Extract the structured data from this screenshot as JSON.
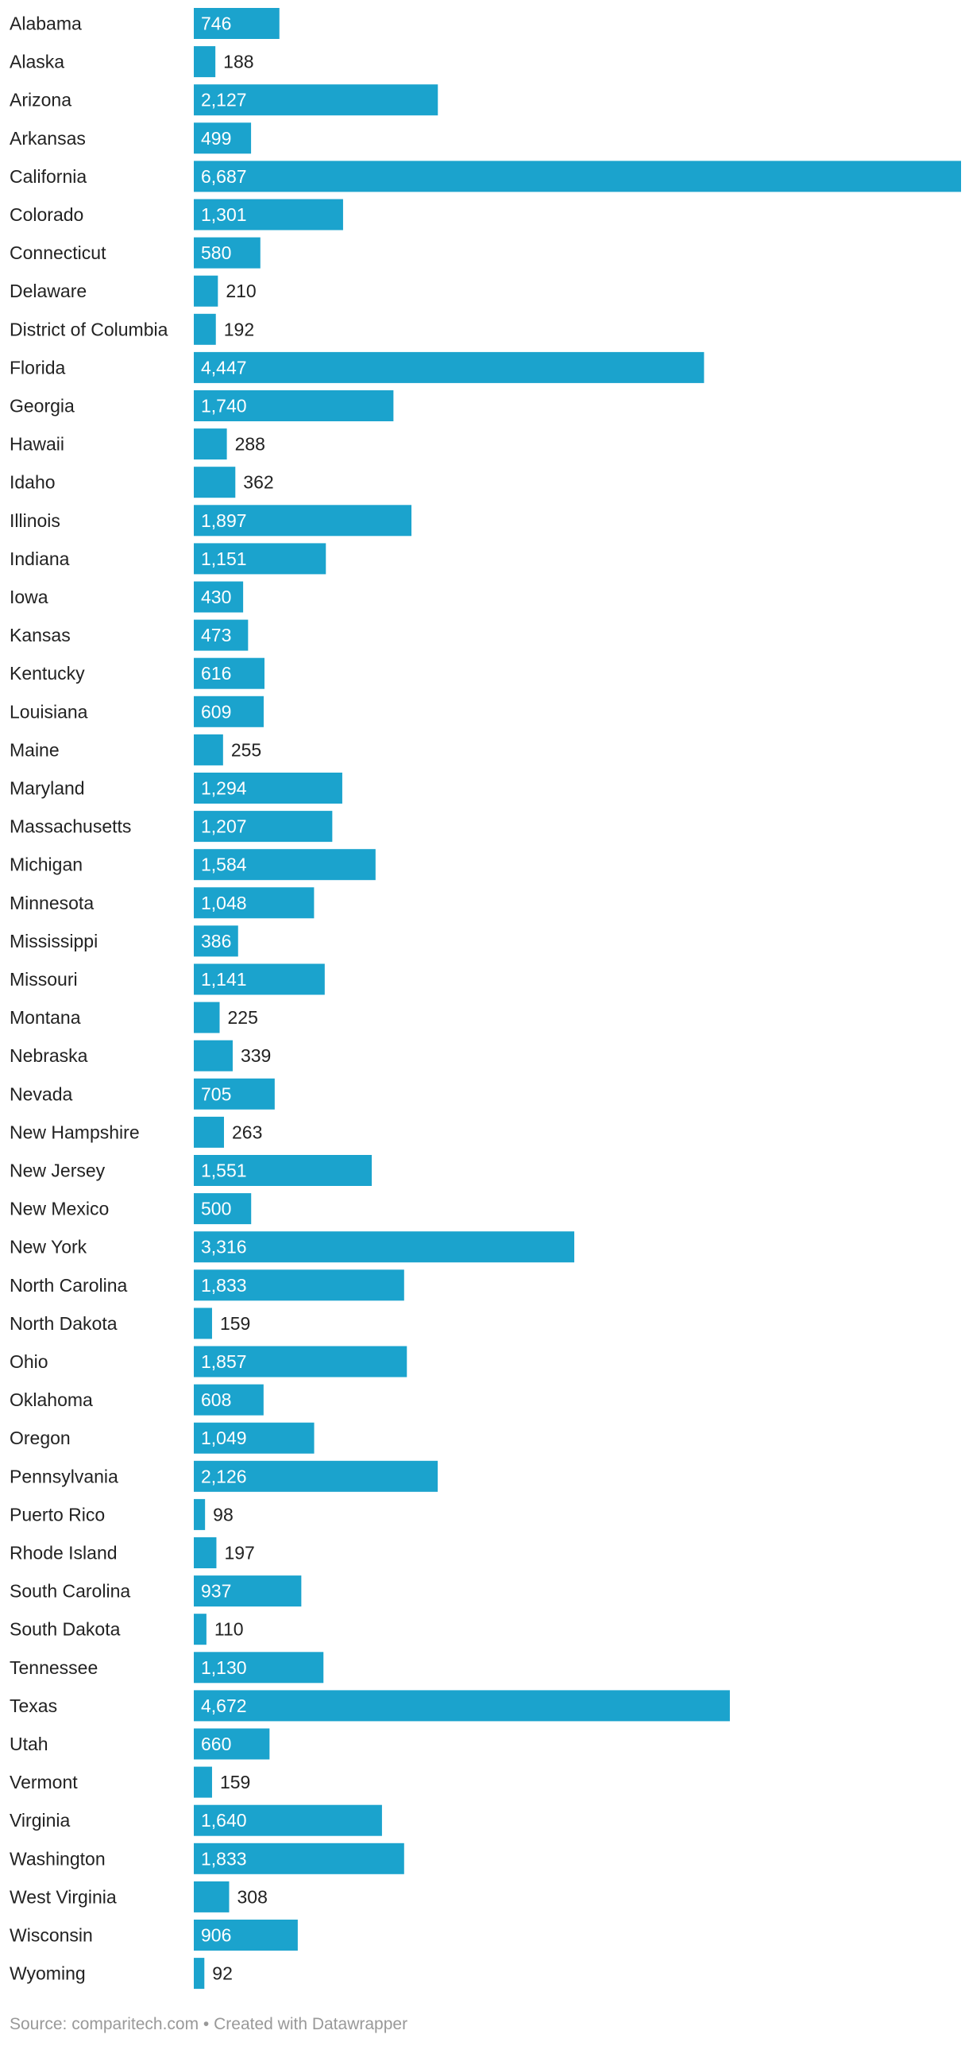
{
  "chart_data": {
    "type": "bar",
    "orientation": "horizontal",
    "categories": [
      "Alabama",
      "Alaska",
      "Arizona",
      "Arkansas",
      "California",
      "Colorado",
      "Connecticut",
      "Delaware",
      "District of Columbia",
      "Florida",
      "Georgia",
      "Hawaii",
      "Idaho",
      "Illinois",
      "Indiana",
      "Iowa",
      "Kansas",
      "Kentucky",
      "Louisiana",
      "Maine",
      "Maryland",
      "Massachusetts",
      "Michigan",
      "Minnesota",
      "Mississippi",
      "Missouri",
      "Montana",
      "Nebraska",
      "Nevada",
      "New Hampshire",
      "New Jersey",
      "New Mexico",
      "New York",
      "North Carolina",
      "North Dakota",
      "Ohio",
      "Oklahoma",
      "Oregon",
      "Pennsylvania",
      "Puerto Rico",
      "Rhode Island",
      "South Carolina",
      "South Dakota",
      "Tennessee",
      "Texas",
      "Utah",
      "Vermont",
      "Virginia",
      "Washington",
      "West Virginia",
      "Wisconsin",
      "Wyoming"
    ],
    "values": [
      746,
      188,
      2127,
      499,
      6687,
      1301,
      580,
      210,
      192,
      4447,
      1740,
      288,
      362,
      1897,
      1151,
      430,
      473,
      616,
      609,
      255,
      1294,
      1207,
      1584,
      1048,
      386,
      1141,
      225,
      339,
      705,
      263,
      1551,
      500,
      3316,
      1833,
      159,
      1857,
      608,
      1049,
      2126,
      98,
      197,
      937,
      110,
      1130,
      4672,
      660,
      159,
      1640,
      1833,
      308,
      906,
      92
    ],
    "value_labels": [
      "746",
      "188",
      "2,127",
      "499",
      "6,687",
      "1,301",
      "580",
      "210",
      "192",
      "4,447",
      "1,740",
      "288",
      "362",
      "1,897",
      "1,151",
      "430",
      "473",
      "616",
      "609",
      "255",
      "1,294",
      "1,207",
      "1,584",
      "1,048",
      "386",
      "1,141",
      "225",
      "339",
      "705",
      "263",
      "1,551",
      "500",
      "3,316",
      "1,833",
      "159",
      "1,857",
      "608",
      "1,049",
      "2,126",
      "98",
      "197",
      "937",
      "110",
      "1,130",
      "4,672",
      "660",
      "159",
      "1,640",
      "1,833",
      "308",
      "906",
      "92"
    ],
    "title": "",
    "xlabel": "",
    "ylabel": "",
    "xlim": [
      0,
      6687
    ],
    "grid": false,
    "legend": "none",
    "colors": {
      "bar": "#1ba3cd",
      "label_inside": "#ffffff",
      "label_outside": "#222222",
      "category_text": "#222222"
    }
  },
  "footer": {
    "text": "Source: comparitech.com • Created with Datawrapper",
    "color": "#999999"
  }
}
